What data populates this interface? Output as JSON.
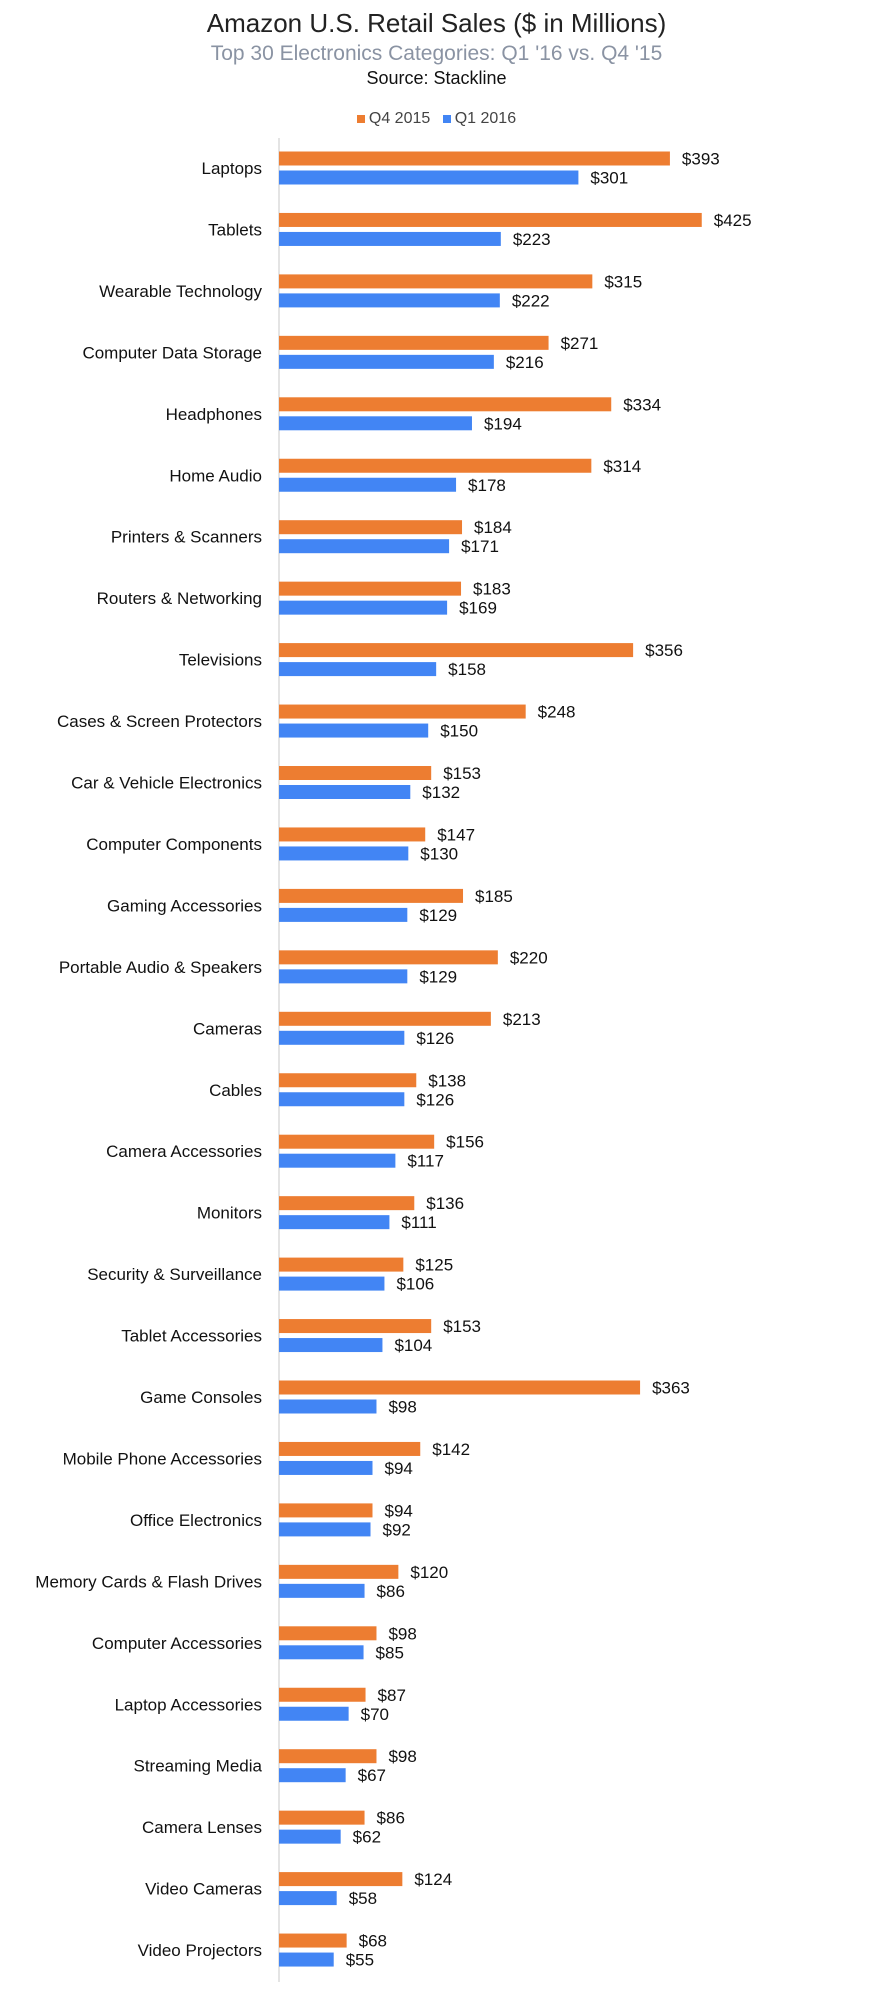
{
  "chart_data": {
    "type": "bar",
    "orientation": "horizontal",
    "title": "Amazon U.S. Retail Sales ($ in Millions)",
    "subtitle": "Top 30 Electronics Categories: Q1 '16 vs. Q4 '15",
    "source": "Source:  Stackline",
    "value_prefix": "$",
    "legend_position": "top",
    "grid": false,
    "xlim": [
      0,
      440
    ],
    "colors": {
      "q4_2015": "#ED7D31",
      "q1_2016": "#4285F4"
    },
    "categories": [
      "Laptops",
      "Tablets",
      "Wearable Technology",
      "Computer Data Storage",
      "Headphones",
      "Home Audio",
      "Printers & Scanners",
      "Routers & Networking",
      "Televisions",
      "Cases & Screen Protectors",
      "Car & Vehicle Electronics",
      "Computer Components",
      "Gaming Accessories",
      "Portable Audio & Speakers",
      "Cameras",
      "Cables",
      "Camera Accessories",
      "Monitors",
      "Security & Surveillance",
      "Tablet Accessories",
      "Game Consoles",
      "Mobile Phone Accessories",
      "Office Electronics",
      "Memory Cards & Flash Drives",
      "Computer Accessories",
      "Laptop Accessories",
      "Streaming Media",
      "Camera Lenses",
      "Video Cameras",
      "Video Projectors"
    ],
    "series": [
      {
        "name": "Q4 2015",
        "color": "#ED7D31",
        "values": [
          393,
          425,
          315,
          271,
          334,
          314,
          184,
          183,
          356,
          248,
          153,
          147,
          185,
          220,
          213,
          138,
          156,
          136,
          125,
          153,
          363,
          142,
          94,
          120,
          98,
          87,
          98,
          86,
          124,
          68
        ]
      },
      {
        "name": "Q1 2016",
        "color": "#4285F4",
        "values": [
          301,
          223,
          222,
          216,
          194,
          178,
          171,
          169,
          158,
          150,
          132,
          130,
          129,
          129,
          126,
          126,
          117,
          111,
          106,
          104,
          98,
          94,
          92,
          86,
          85,
          70,
          67,
          62,
          58,
          55
        ]
      }
    ]
  }
}
